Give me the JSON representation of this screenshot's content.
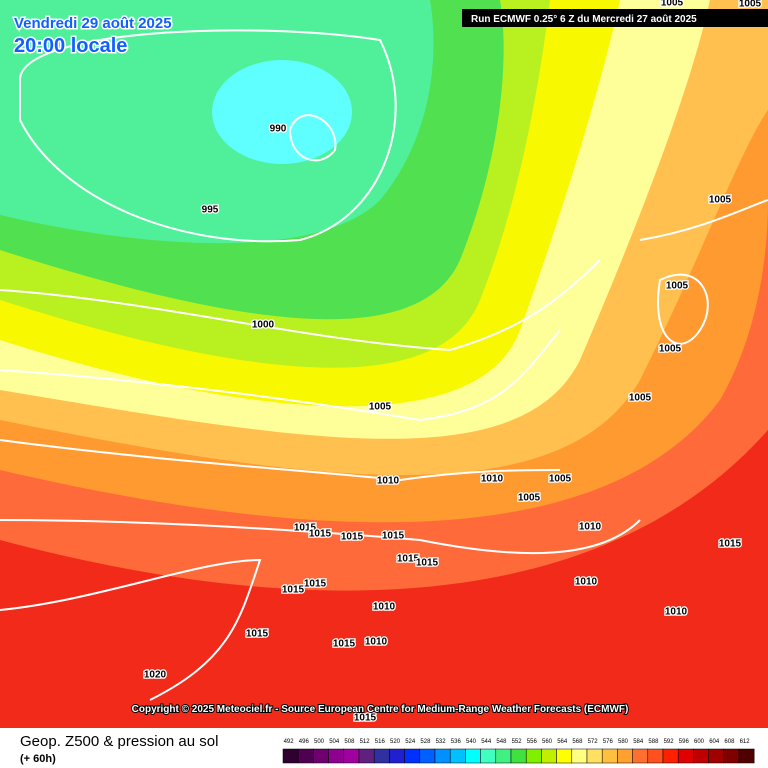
{
  "header": {
    "date": "Vendredi 29 août 2025",
    "time": "20:00 locale"
  },
  "run_info": "Run ECMWF 0.25° 6 Z du Mercredi 27 août 2025",
  "copyright": "Copyright © 2025 Meteociel.fr - Source European Centre for Medium-Range Weather Forecasts (ECMWF)",
  "footer": {
    "title": "Geop. Z500 & pression au sol",
    "subtitle": "(+ 60h)"
  },
  "isobar_labels": [
    "1005",
    "1005",
    "990",
    "995",
    "1005",
    "1005",
    "1000",
    "1005",
    "1005",
    "1005",
    "1010",
    "1010",
    "1005",
    "1005",
    "1015",
    "1015",
    "1015",
    "1015",
    "1010",
    "1015",
    "1015",
    "1015",
    "1015",
    "1015",
    "1010",
    "1010",
    "1010",
    "1015",
    "1015",
    "1010",
    "1020",
    "1015"
  ],
  "legend": [
    {
      "value": 492,
      "color": "#300030"
    },
    {
      "value": 496,
      "color": "#500050"
    },
    {
      "value": 500,
      "color": "#700070"
    },
    {
      "value": 504,
      "color": "#900090"
    },
    {
      "value": 508,
      "color": "#a000a0"
    },
    {
      "value": 512,
      "color": "#602080"
    },
    {
      "value": 516,
      "color": "#3030a0"
    },
    {
      "value": 520,
      "color": "#2020d0"
    },
    {
      "value": 524,
      "color": "#0030ff"
    },
    {
      "value": 528,
      "color": "#0060ff"
    },
    {
      "value": 532,
      "color": "#0090ff"
    },
    {
      "value": 536,
      "color": "#00c0ff"
    },
    {
      "value": 540,
      "color": "#00ffff"
    },
    {
      "value": 544,
      "color": "#40ffc0"
    },
    {
      "value": 548,
      "color": "#40f080"
    },
    {
      "value": 552,
      "color": "#40e040"
    },
    {
      "value": 556,
      "color": "#80f000"
    },
    {
      "value": 560,
      "color": "#c0f000"
    },
    {
      "value": 564,
      "color": "#ffff00"
    },
    {
      "value": 568,
      "color": "#ffff80"
    },
    {
      "value": 572,
      "color": "#ffe060"
    },
    {
      "value": 576,
      "color": "#ffc040"
    },
    {
      "value": 580,
      "color": "#ffa030"
    },
    {
      "value": 584,
      "color": "#ff7030"
    },
    {
      "value": 588,
      "color": "#ff5020"
    },
    {
      "value": 592,
      "color": "#ff2000"
    },
    {
      "value": 596,
      "color": "#e00000"
    },
    {
      "value": 600,
      "color": "#c00000"
    },
    {
      "value": 604,
      "color": "#a00000"
    },
    {
      "value": 608,
      "color": "#800000"
    },
    {
      "value": 612,
      "color": "#500000"
    }
  ]
}
